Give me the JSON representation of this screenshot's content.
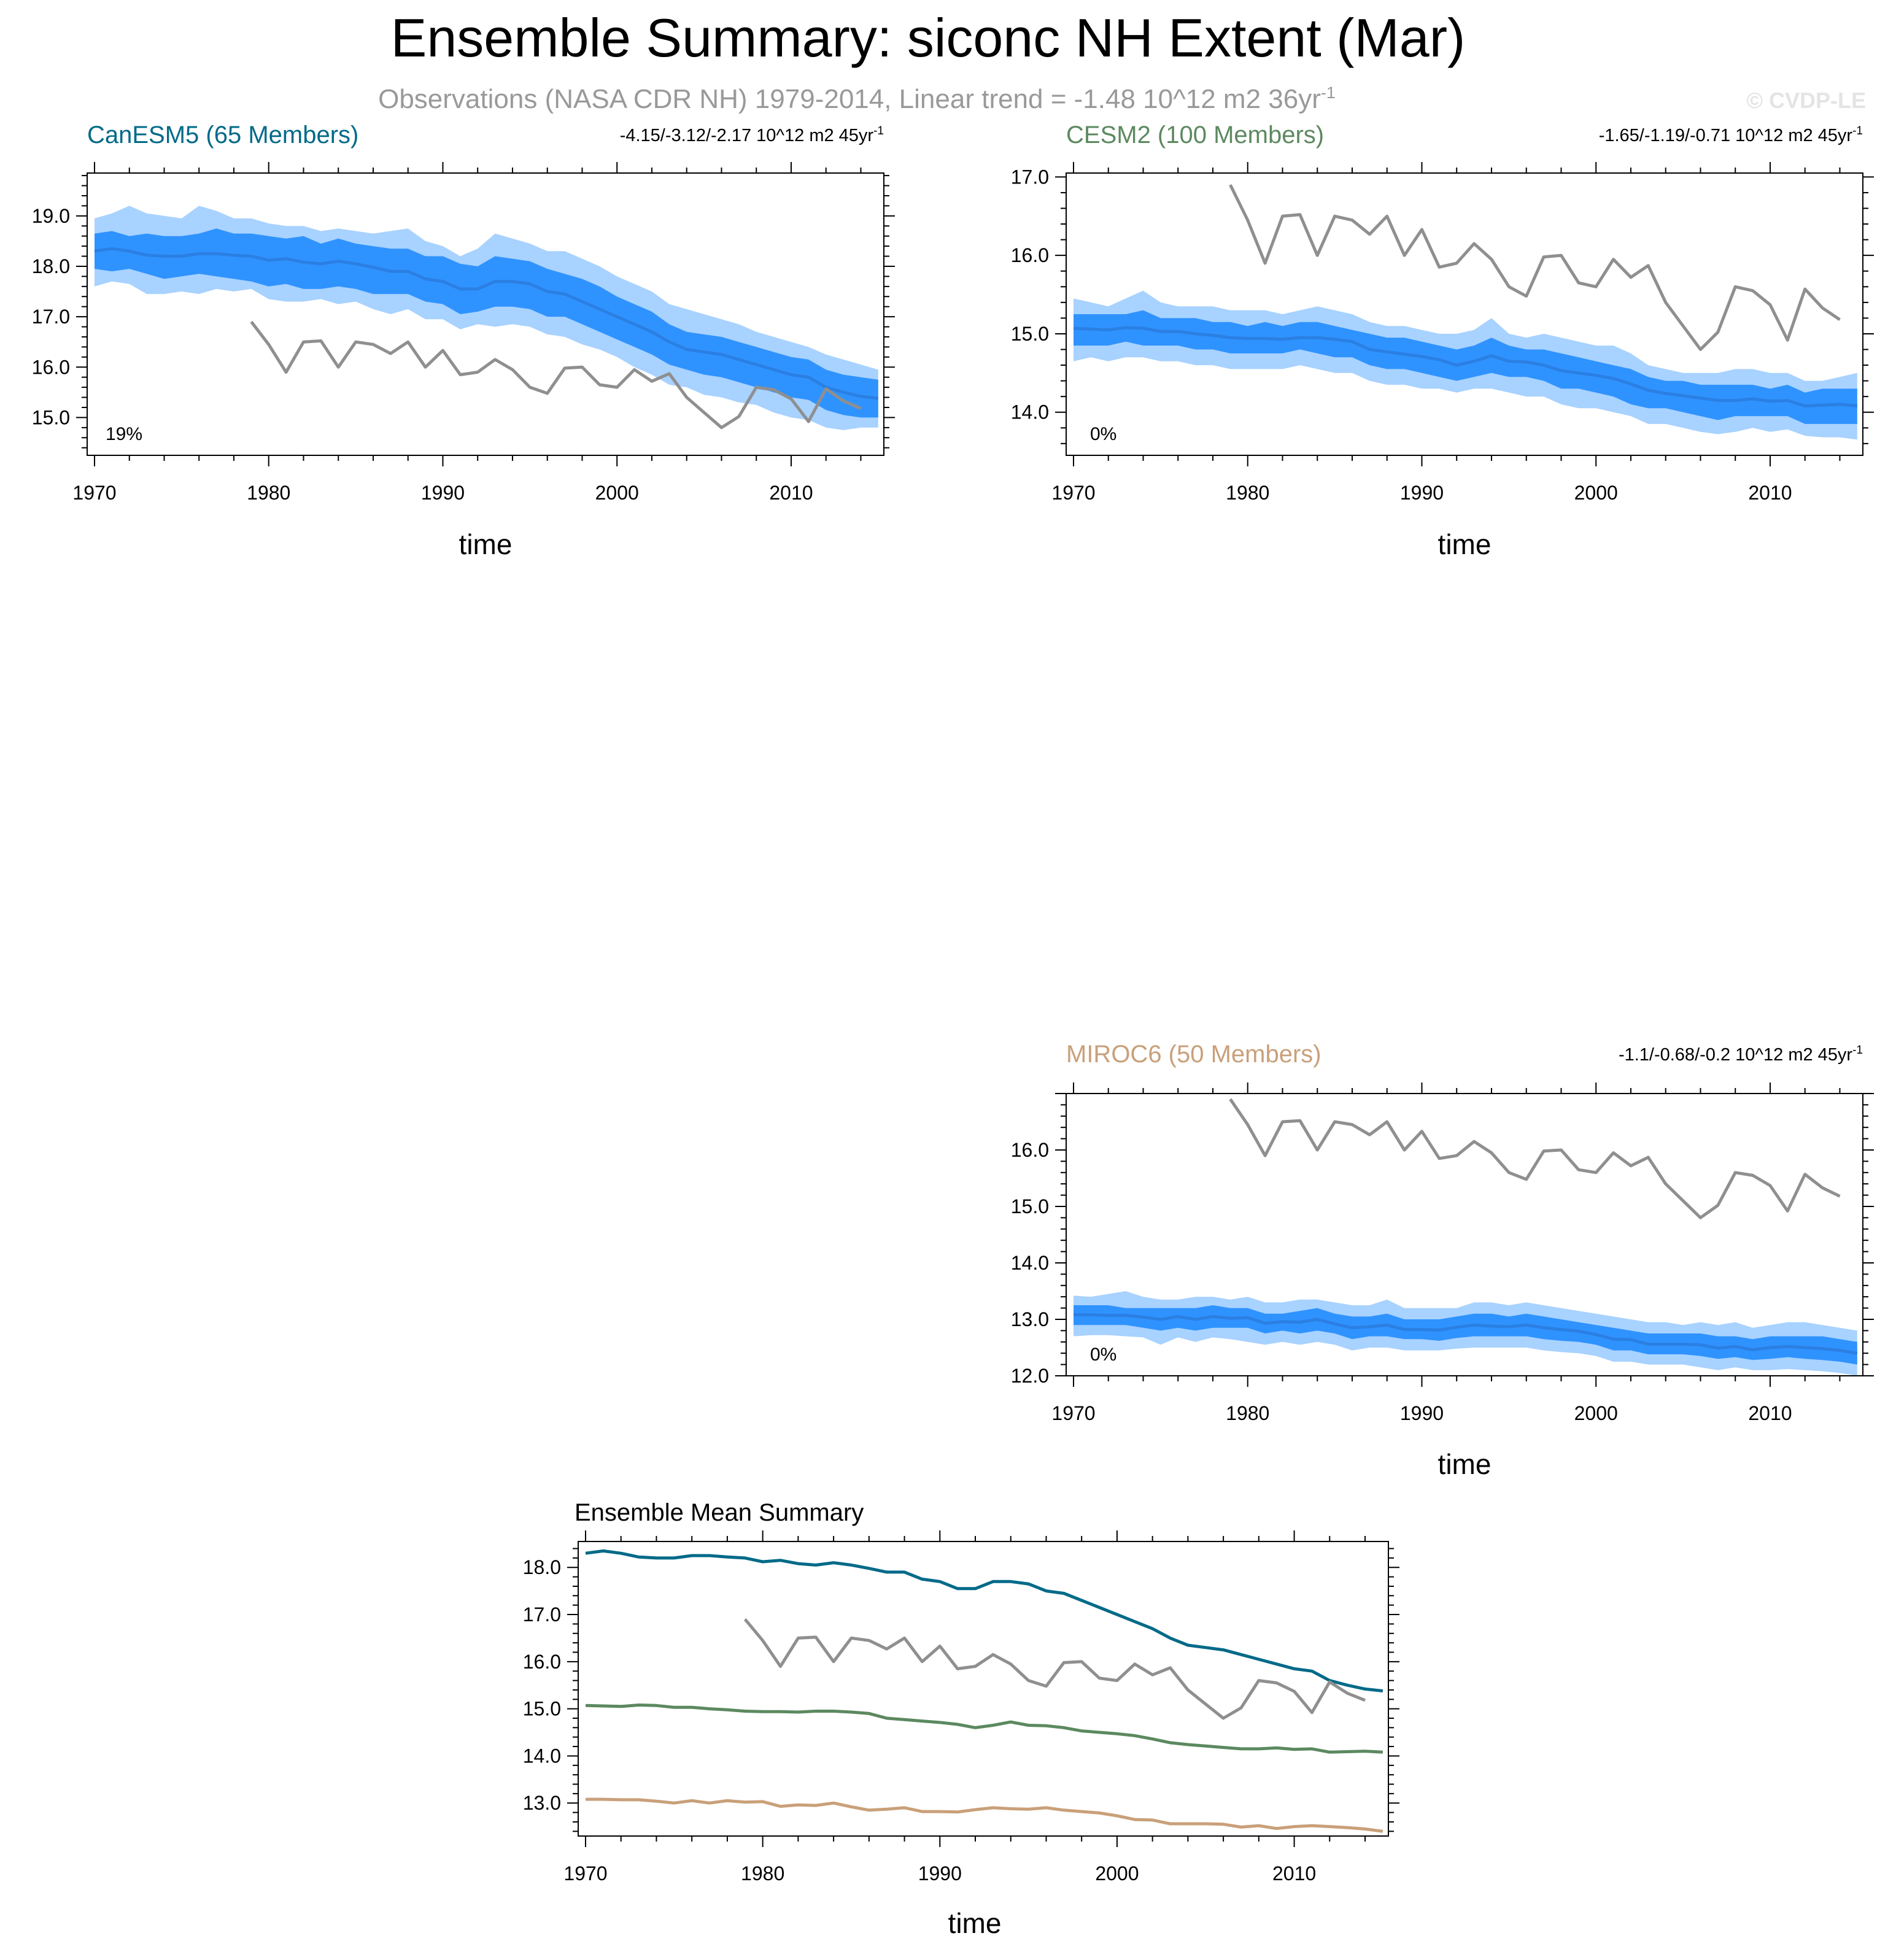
{
  "title": "Ensemble Summary: siconc NH Extent (Mar)",
  "subtitle": "Observations (NASA CDR NH) 1979-2014, Linear trend = -1.48 10^12 m2 36yr",
  "subtitle_sup": "-1",
  "copyright": "© CVDP-LE",
  "colors": {
    "light_band": "#a8d2ff",
    "dark_band": "#2f93ff",
    "mean_line": "#2b7fe3",
    "obs_line": "#8f8f8f",
    "axis": "#000000",
    "subtitle": "#999999",
    "copyright": "#e4e4e4",
    "canesm5": "#006a88",
    "cesm2": "#5c8960",
    "miroc6": "#c9a07a"
  },
  "obs": {
    "name": "NASA CDR NH",
    "years": [
      1979,
      1980,
      1981,
      1982,
      1983,
      1984,
      1985,
      1986,
      1987,
      1988,
      1989,
      1990,
      1991,
      1992,
      1993,
      1994,
      1995,
      1996,
      1997,
      1998,
      1999,
      2000,
      2001,
      2002,
      2003,
      2004,
      2005,
      2006,
      2007,
      2008,
      2009,
      2010,
      2011,
      2012,
      2013,
      2014
    ],
    "values": [
      16.9,
      16.45,
      15.9,
      16.5,
      16.52,
      16.0,
      16.5,
      16.45,
      16.27,
      16.5,
      16.0,
      16.33,
      15.85,
      15.9,
      16.15,
      15.95,
      15.6,
      15.48,
      15.98,
      16.0,
      15.65,
      15.6,
      15.95,
      15.72,
      15.87,
      15.4,
      15.1,
      14.8,
      15.02,
      15.6,
      15.55,
      15.37,
      14.92,
      15.57,
      15.33,
      15.18
    ]
  },
  "panels": [
    {
      "name": "CanESM5",
      "label": "CanESM5 (65 Members)",
      "trend_text": "-4.15/-3.12/-2.17 10^12 m2 45yr",
      "trend_sup": "-1",
      "percent": "19%",
      "x_label": "time",
      "x_ticks": [
        "1970",
        "1980",
        "1990",
        "2000",
        "2010"
      ],
      "y_ticks": [
        "15.0",
        "16.0",
        "17.0",
        "18.0",
        "19.0"
      ],
      "ylim": [
        14.25,
        19.85
      ],
      "mean": [
        18.3,
        18.35,
        18.3,
        18.22,
        18.2,
        18.2,
        18.25,
        18.25,
        18.22,
        18.2,
        18.12,
        18.15,
        18.08,
        18.05,
        18.1,
        18.05,
        17.98,
        17.9,
        17.9,
        17.75,
        17.7,
        17.55,
        17.55,
        17.7,
        17.7,
        17.65,
        17.5,
        17.45,
        17.3,
        17.15,
        17.0,
        16.85,
        16.7,
        16.5,
        16.35,
        16.3,
        16.25,
        16.15,
        16.05,
        15.95,
        15.85,
        15.8,
        15.6,
        15.5,
        15.42,
        15.38
      ],
      "inner_band": {
        "upper": [
          18.65,
          18.7,
          18.6,
          18.65,
          18.6,
          18.6,
          18.65,
          18.75,
          18.65,
          18.65,
          18.6,
          18.55,
          18.6,
          18.45,
          18.55,
          18.45,
          18.4,
          18.35,
          18.35,
          18.2,
          18.2,
          18.05,
          18.0,
          18.2,
          18.15,
          18.1,
          17.95,
          17.85,
          17.75,
          17.6,
          17.4,
          17.25,
          17.1,
          16.85,
          16.7,
          16.65,
          16.6,
          16.5,
          16.4,
          16.3,
          16.2,
          16.15,
          15.95,
          15.85,
          15.8,
          15.75
        ],
        "lower": [
          17.95,
          17.9,
          17.95,
          17.85,
          17.75,
          17.8,
          17.85,
          17.8,
          17.75,
          17.7,
          17.6,
          17.65,
          17.55,
          17.55,
          17.6,
          17.55,
          17.45,
          17.45,
          17.45,
          17.3,
          17.25,
          17.05,
          17.1,
          17.2,
          17.2,
          17.15,
          17.0,
          17.0,
          16.85,
          16.7,
          16.55,
          16.4,
          16.25,
          16.05,
          15.95,
          15.85,
          15.8,
          15.7,
          15.6,
          15.5,
          15.4,
          15.35,
          15.15,
          15.05,
          15.0,
          15.0
        ]
      },
      "outer_band": {
        "upper": [
          18.95,
          19.05,
          19.2,
          19.05,
          19.0,
          18.95,
          19.2,
          19.1,
          18.95,
          18.95,
          18.85,
          18.8,
          18.8,
          18.7,
          18.75,
          18.7,
          18.65,
          18.7,
          18.75,
          18.5,
          18.4,
          18.2,
          18.35,
          18.65,
          18.55,
          18.45,
          18.3,
          18.3,
          18.15,
          18.0,
          17.8,
          17.65,
          17.5,
          17.25,
          17.15,
          17.05,
          16.95,
          16.85,
          16.7,
          16.6,
          16.5,
          16.4,
          16.25,
          16.15,
          16.05,
          15.95
        ],
        "lower": [
          17.6,
          17.7,
          17.65,
          17.45,
          17.45,
          17.5,
          17.45,
          17.55,
          17.5,
          17.55,
          17.35,
          17.3,
          17.3,
          17.35,
          17.25,
          17.3,
          17.15,
          17.05,
          17.15,
          16.95,
          16.95,
          16.75,
          16.85,
          16.8,
          16.85,
          16.8,
          16.65,
          16.6,
          16.45,
          16.35,
          16.2,
          16.0,
          15.85,
          15.65,
          15.6,
          15.45,
          15.4,
          15.3,
          15.25,
          15.1,
          15.0,
          14.95,
          14.8,
          14.75,
          14.8,
          14.8
        ]
      }
    },
    {
      "name": "CESM2",
      "label": "CESM2 (100 Members)",
      "trend_text": "-1.65/-1.19/-0.71 10^12 m2 45yr",
      "trend_sup": "-1",
      "percent": "0%",
      "x_label": "time",
      "x_ticks": [
        "1970",
        "1980",
        "1990",
        "2000",
        "2010"
      ],
      "y_ticks": [
        "14.0",
        "15.0",
        "16.0",
        "17.0"
      ],
      "ylim": [
        13.45,
        17.05
      ],
      "mean": [
        15.07,
        15.06,
        15.05,
        15.08,
        15.07,
        15.03,
        15.03,
        15.0,
        14.98,
        14.95,
        14.94,
        14.94,
        14.93,
        14.95,
        14.95,
        14.93,
        14.9,
        14.8,
        14.77,
        14.74,
        14.71,
        14.67,
        14.6,
        14.65,
        14.72,
        14.65,
        14.64,
        14.6,
        14.53,
        14.5,
        14.47,
        14.43,
        14.36,
        14.28,
        14.24,
        14.21,
        14.18,
        14.15,
        14.15,
        14.17,
        14.14,
        14.15,
        14.08,
        14.09,
        14.1,
        14.08
      ],
      "inner_band": {
        "upper": [
          15.25,
          15.25,
          15.25,
          15.25,
          15.3,
          15.2,
          15.2,
          15.2,
          15.15,
          15.15,
          15.1,
          15.15,
          15.1,
          15.15,
          15.15,
          15.1,
          15.05,
          15.0,
          14.95,
          14.95,
          14.9,
          14.85,
          14.8,
          14.85,
          14.95,
          14.85,
          14.8,
          14.8,
          14.75,
          14.7,
          14.65,
          14.6,
          14.55,
          14.45,
          14.4,
          14.4,
          14.35,
          14.35,
          14.35,
          14.35,
          14.3,
          14.35,
          14.25,
          14.3,
          14.3,
          14.3
        ],
        "lower": [
          14.85,
          14.85,
          14.85,
          14.9,
          14.85,
          14.85,
          14.85,
          14.8,
          14.8,
          14.75,
          14.75,
          14.75,
          14.75,
          14.8,
          14.75,
          14.7,
          14.7,
          14.6,
          14.55,
          14.55,
          14.5,
          14.45,
          14.4,
          14.45,
          14.5,
          14.45,
          14.45,
          14.4,
          14.3,
          14.3,
          14.25,
          14.2,
          14.1,
          14.05,
          14.05,
          14.0,
          13.95,
          13.9,
          13.95,
          13.95,
          13.95,
          13.95,
          13.85,
          13.85,
          13.85,
          13.85
        ]
      },
      "outer_band": {
        "upper": [
          15.45,
          15.4,
          15.35,
          15.45,
          15.55,
          15.4,
          15.35,
          15.35,
          15.35,
          15.3,
          15.3,
          15.3,
          15.25,
          15.3,
          15.35,
          15.3,
          15.25,
          15.15,
          15.1,
          15.1,
          15.05,
          15.0,
          15.0,
          15.05,
          15.2,
          15.0,
          14.95,
          15.0,
          14.95,
          14.9,
          14.85,
          14.85,
          14.75,
          14.6,
          14.55,
          14.5,
          14.5,
          14.5,
          14.55,
          14.55,
          14.5,
          14.5,
          14.4,
          14.4,
          14.45,
          14.5
        ],
        "lower": [
          14.65,
          14.7,
          14.65,
          14.7,
          14.7,
          14.65,
          14.65,
          14.6,
          14.6,
          14.55,
          14.55,
          14.55,
          14.55,
          14.6,
          14.55,
          14.5,
          14.5,
          14.4,
          14.35,
          14.35,
          14.3,
          14.3,
          14.25,
          14.3,
          14.3,
          14.25,
          14.2,
          14.2,
          14.1,
          14.05,
          14.05,
          14.0,
          13.95,
          13.85,
          13.85,
          13.8,
          13.75,
          13.72,
          13.75,
          13.8,
          13.75,
          13.78,
          13.7,
          13.68,
          13.68,
          13.65
        ]
      }
    },
    {
      "name": "MIROC6",
      "label": "MIROC6 (50 Members)",
      "trend_text": "-1.1/-0.68/-0.2 10^12 m2 45yr",
      "trend_sup": "-1",
      "percent": "0%",
      "x_label": "time",
      "x_ticks": [
        "1970",
        "1980",
        "1990",
        "2000",
        "2010"
      ],
      "y_ticks": [
        "12.0",
        "13.0",
        "14.0",
        "15.0",
        "16.0"
      ],
      "ylim": [
        12.0,
        17.0
      ],
      "mean": [
        13.08,
        13.08,
        13.07,
        13.07,
        13.04,
        13.0,
        13.05,
        13.0,
        13.05,
        13.02,
        13.03,
        12.93,
        12.96,
        12.95,
        13.0,
        12.92,
        12.85,
        12.87,
        12.9,
        12.82,
        12.82,
        12.81,
        12.86,
        12.9,
        12.88,
        12.87,
        12.9,
        12.85,
        12.82,
        12.79,
        12.73,
        12.65,
        12.64,
        12.56,
        12.56,
        12.56,
        12.55,
        12.49,
        12.52,
        12.46,
        12.5,
        12.52,
        12.5,
        12.48,
        12.45,
        12.4
      ],
      "inner_band": {
        "upper": [
          13.25,
          13.25,
          13.25,
          13.2,
          13.2,
          13.2,
          13.2,
          13.2,
          13.25,
          13.2,
          13.2,
          13.1,
          13.1,
          13.15,
          13.2,
          13.1,
          13.05,
          13.05,
          13.1,
          13.0,
          13.0,
          13.0,
          13.05,
          13.1,
          13.1,
          13.05,
          13.1,
          13.05,
          13.0,
          12.95,
          12.9,
          12.85,
          12.8,
          12.75,
          12.75,
          12.75,
          12.75,
          12.7,
          12.7,
          12.65,
          12.7,
          12.7,
          12.7,
          12.7,
          12.65,
          12.6
        ],
        "lower": [
          12.9,
          12.9,
          12.9,
          12.9,
          12.85,
          12.8,
          12.85,
          12.8,
          12.85,
          12.85,
          12.85,
          12.75,
          12.8,
          12.75,
          12.8,
          12.75,
          12.65,
          12.7,
          12.7,
          12.65,
          12.65,
          12.62,
          12.67,
          12.7,
          12.7,
          12.7,
          12.7,
          12.65,
          12.62,
          12.6,
          12.55,
          12.45,
          12.45,
          12.38,
          12.38,
          12.38,
          12.35,
          12.3,
          12.33,
          12.28,
          12.3,
          12.33,
          12.3,
          12.28,
          12.25,
          12.2
        ]
      },
      "outer_band": {
        "upper": [
          13.42,
          13.4,
          13.45,
          13.5,
          13.4,
          13.35,
          13.35,
          13.4,
          13.4,
          13.35,
          13.4,
          13.3,
          13.3,
          13.35,
          13.35,
          13.3,
          13.25,
          13.25,
          13.35,
          13.2,
          13.2,
          13.2,
          13.2,
          13.3,
          13.3,
          13.25,
          13.3,
          13.25,
          13.2,
          13.15,
          13.1,
          13.05,
          13.0,
          12.95,
          12.95,
          12.9,
          12.95,
          12.9,
          12.95,
          12.85,
          12.9,
          12.95,
          12.95,
          12.9,
          12.85,
          12.8
        ],
        "lower": [
          12.7,
          12.72,
          12.72,
          12.7,
          12.68,
          12.55,
          12.68,
          12.6,
          12.68,
          12.65,
          12.6,
          12.55,
          12.6,
          12.55,
          12.6,
          12.55,
          12.45,
          12.5,
          12.5,
          12.45,
          12.45,
          12.45,
          12.48,
          12.5,
          12.5,
          12.5,
          12.5,
          12.45,
          12.42,
          12.4,
          12.35,
          12.25,
          12.25,
          12.2,
          12.2,
          12.2,
          12.15,
          12.1,
          12.15,
          12.1,
          12.1,
          12.12,
          12.1,
          12.08,
          12.05,
          12.0
        ]
      }
    }
  ],
  "summary": {
    "title": "Ensemble Mean Summary",
    "x_label": "time",
    "x_ticks": [
      "1970",
      "1980",
      "1990",
      "2000",
      "2010"
    ],
    "y_ticks": [
      "13.0",
      "14.0",
      "15.0",
      "16.0",
      "17.0",
      "18.0"
    ],
    "ylim": [
      12.3,
      18.55
    ]
  },
  "chart_data": {
    "type": "line",
    "title": "Ensemble Summary: siconc NH Extent (Mar)",
    "subtitle": "Observations (NASA CDR NH) 1979-2014, Linear trend = -1.48 10^12 m2 36yr^-1",
    "xlabel": "time",
    "ylabel": "",
    "xlim": [
      1970,
      2014
    ],
    "x_start": 1970,
    "x_end": 2015,
    "x": "years 1970-2015, one value per year",
    "series": [
      "CanESM5 ensemble mean",
      "CESM2 ensemble mean",
      "MIROC6 ensemble mean",
      "Observations (NASA CDR NH, 1979-2014)"
    ],
    "panels": [
      "CanESM5 (65 Members)",
      "CESM2 (100 Members)",
      "MIROC6 (50 Members)",
      "Ensemble Mean Summary"
    ]
  }
}
